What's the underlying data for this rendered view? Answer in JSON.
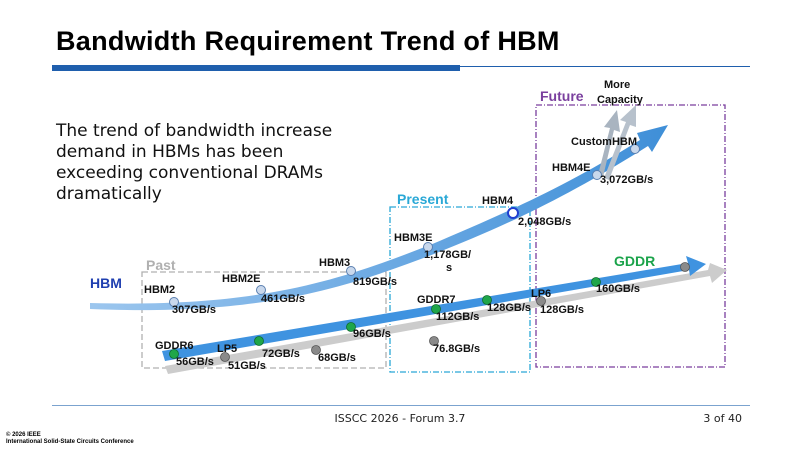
{
  "title": "Bandwidth Requirement Trend of HBM",
  "description": "The trend of bandwidth increase demand in HBMs has been exceeding conventional DRAMs dramatically",
  "regions": {
    "past": "Past",
    "present": "Present",
    "future": "Future"
  },
  "series_labels": {
    "hbm": "HBM",
    "gddr": "GDDR"
  },
  "more_capacity": [
    "More",
    "Capacity"
  ],
  "hbm_points": [
    {
      "name": "HBM2",
      "value": "307GB/s"
    },
    {
      "name": "HBM2E",
      "value": "461GB/s"
    },
    {
      "name": "HBM3",
      "value": "819GB/s"
    },
    {
      "name": "HBM3E",
      "value_lines": [
        "1,178GB/",
        "s"
      ]
    },
    {
      "name": "HBM4",
      "value": "2,048GB/s"
    },
    {
      "name": "HBM4E",
      "value": "3,072GB/s"
    },
    {
      "name": "CustomHBM",
      "value": ""
    }
  ],
  "gddr_points": [
    {
      "name": "GDDR6",
      "value": "56GB/s"
    },
    {
      "value": "72GB/s"
    },
    {
      "value": "96GB/s"
    },
    {
      "name": "GDDR7",
      "value": "112GB/s"
    },
    {
      "value": "128GB/s"
    },
    {
      "value": "160GB/s"
    }
  ],
  "lp_points": [
    {
      "name": "LP5",
      "value": "51GB/s"
    },
    {
      "value": "68GB/s"
    },
    {
      "value": "76.8GB/s"
    },
    {
      "name": "LP6",
      "value": "128GB/s"
    }
  ],
  "colors": {
    "title_bar": "#1f5fad",
    "hbm_arrow": "#3f8fd8",
    "gddr_arrow": "#3f93e0",
    "lp_arrow": "#cccccc",
    "hbm_label": "#1f3fb0",
    "gddr_label": "#1aa34a",
    "past": "#b0b0b0",
    "present": "#2aa8d6",
    "future": "#7a3f9e",
    "green_dot": "#1fa64a",
    "gray_dot": "#8a8a8a"
  },
  "footer": {
    "center": "ISSCC 2026 - Forum 3.7",
    "page": "3 of 40",
    "copyright_line1": "© 2026 IEEE",
    "copyright_line2": "International Solid-State Circuits Conference"
  }
}
